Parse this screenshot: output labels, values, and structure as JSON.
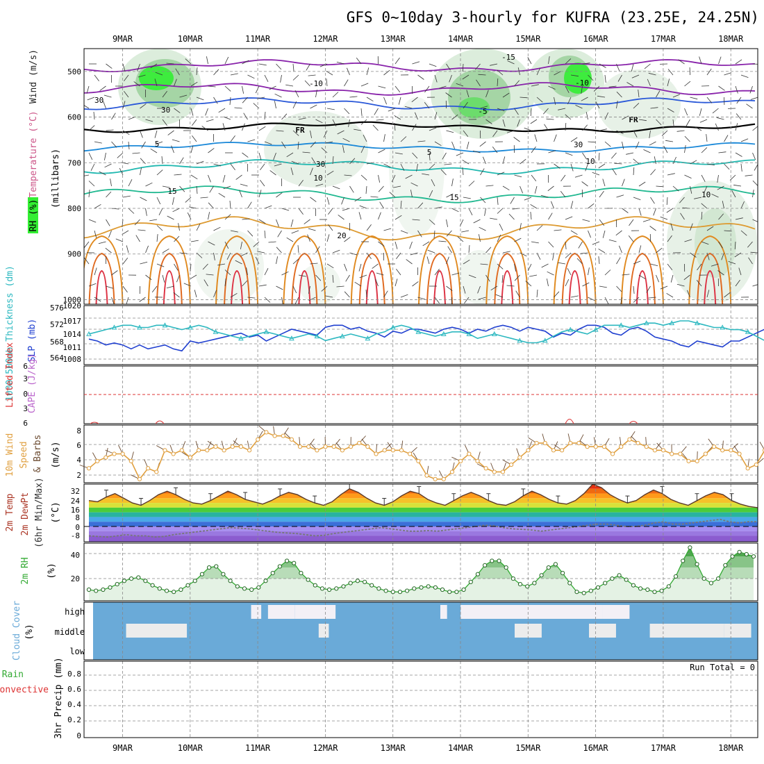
{
  "title": "GFS 0~10day 3-hourly for KUFRA (23.25E, 24.25N)",
  "dates": [
    "9MAR",
    "10MAR",
    "11MAR",
    "12MAR",
    "13MAR",
    "14MAR",
    "15MAR",
    "16MAR",
    "17MAR",
    "18MAR"
  ],
  "colors": {
    "rh_green": "#33ee33",
    "slp": "#1f3fd0",
    "thickness": "#2cb8c0",
    "wind_speed": "#e0a040",
    "cloud_bg": "#6aaad8",
    "li_line": "#dd3333",
    "cape": "#bb66cc",
    "rh2m": "#33aa33",
    "temp_orange": "#ff9a1a"
  },
  "panels": {
    "upper": {
      "ylabel": "(millibars)",
      "legend": [
        "RH (%)",
        "Temperature (°C)",
        "Wind (m/s)"
      ],
      "legend_colors": [
        "#33aa33",
        "#cc5588",
        "#222222"
      ],
      "ticks": [
        "500",
        "600",
        "700",
        "800",
        "900",
        "1000"
      ],
      "isotherms": [
        {
          "label": "-15",
          "color": "#8822aa",
          "labels_at": [
            "15MAR"
          ]
        },
        {
          "label": "-10",
          "color": "#8822aa",
          "labels_at": [
            "12MAR",
            "16MAR"
          ]
        },
        {
          "label": "-5",
          "color": "#2a58d8",
          "labels_at": [
            "14MAR"
          ]
        },
        {
          "label": "FR",
          "color": "#000000",
          "labels_at": [
            "11MAR",
            "16MAR"
          ]
        },
        {
          "label": "5",
          "color": "#1a88d8",
          "labels_at": [
            "10MAR",
            "14MAR"
          ]
        },
        {
          "label": "10",
          "color": "#20b8b0",
          "labels_at": [
            "12MAR",
            "15MAR"
          ]
        },
        {
          "label": "15",
          "color": "#20b890",
          "labels_at": [
            "10MAR",
            "13MAR"
          ]
        },
        {
          "label": "20",
          "color": "#dd9a30",
          "labels_at": [
            "12MAR"
          ]
        }
      ],
      "rh_labels": [
        "30",
        "30",
        "30",
        "30",
        "10"
      ]
    },
    "pressure": {
      "ylabel_left": "1000-500mb Thickness (dm)",
      "ylabel_right": "SLP (mb)",
      "ticks_left": [
        "576",
        "572",
        "568",
        "564"
      ],
      "ticks_right": [
        "1020",
        "1017",
        "1014",
        "1011",
        "1008"
      ]
    },
    "stability": {
      "ylabel_a": "Lifted Index",
      "ylabel_b": "CAPE (J/kg)",
      "ticks": [
        "6",
        "3",
        "0",
        "3",
        "6"
      ]
    },
    "wind": {
      "ylabel_a": "10m Wind",
      "ylabel_b": "Speed",
      "ylabel_c": "& Barbs",
      "ylabel_d": "(m/s)",
      "ticks": [
        "8",
        "6",
        "4",
        "2"
      ]
    },
    "temp": {
      "ylabel_a": "2m Temp",
      "ylabel_b": "2m DewPt",
      "ylabel_c": "(6hr Min/Max)",
      "ylabel_d": "(°C)",
      "ticks": [
        "32",
        "24",
        "16",
        "8",
        "0",
        "-8"
      ]
    },
    "rh": {
      "ylabel_a": "2m RH",
      "ylabel_b": "(%)",
      "ticks": [
        "40",
        "20"
      ]
    },
    "cloud": {
      "ylabel_a": "Cloud Cover",
      "ylabel_b": "(%)",
      "levels": [
        "high",
        "middle",
        "low"
      ]
    },
    "precip": {
      "ylabel_a": "Total / Rain",
      "ylabel_b": "Convective",
      "ylabel_c": "3hr Precip (mm)",
      "ticks": [
        "0.8",
        "0.6",
        "0.4",
        "0.2",
        "0"
      ],
      "run_total": "Run Total = 0"
    }
  },
  "chart_data": {
    "type": "line",
    "title": "GFS 0~10day 3-hourly for KUFRA (23.25E, 24.25N)",
    "time_axis": [
      "9MAR",
      "10MAR",
      "11MAR",
      "12MAR",
      "13MAR",
      "14MAR",
      "15MAR",
      "16MAR",
      "17MAR",
      "18MAR"
    ],
    "step_hours": 3,
    "series": [
      {
        "name": "SLP (mb)",
        "axis_range": [
          1006,
          1021
        ],
        "values": [
          1012.5,
          1012,
          1011,
          1011.5,
          1011,
          1010,
          1011,
          1010,
          1010.5,
          1011,
          1010,
          1009.5,
          1012,
          1011.5,
          1012,
          1012.5,
          1013,
          1013.5,
          1014,
          1013,
          1013.5,
          1012,
          1013,
          1014,
          1015,
          1014.5,
          1014,
          1013.5,
          1015.5,
          1016,
          1016,
          1015,
          1015.5,
          1014.5,
          1014,
          1013,
          1014.5,
          1014,
          1015,
          1015,
          1014.5,
          1014,
          1015,
          1015.5,
          1015,
          1014,
          1015,
          1014.5,
          1015.5,
          1016,
          1015.5,
          1014.5,
          1015.5,
          1015,
          1014.5,
          1013,
          1014,
          1013.5,
          1015,
          1016,
          1016,
          1015.5,
          1014,
          1013.5,
          1015,
          1015.5,
          1014.5,
          1013,
          1012.5,
          1012,
          1011,
          1010.5,
          1012,
          1011.5,
          1011,
          1010.5,
          1012,
          1012,
          1013,
          1014,
          1015,
          1014,
          1014.5,
          1015,
          1016.5,
          1016.5,
          1015.5,
          1015,
          1016,
          1016.5,
          1017,
          1016.5,
          1016,
          1017.5,
          1018,
          1017.5,
          1017,
          1018.5,
          1019,
          1018.5
        ]
      },
      {
        "name": "1000-500mb Thickness (dm)",
        "axis_range": [
          563.5,
          577
        ],
        "values": [
          570.5,
          571,
          571.5,
          572,
          572.5,
          572.5,
          572,
          572,
          572.5,
          572.5,
          572,
          571.5,
          572,
          572.5,
          572,
          571,
          570.5,
          570,
          569.5,
          570,
          570.5,
          571,
          570.5,
          570,
          569.5,
          570,
          570.5,
          570,
          569,
          569.5,
          570,
          570.5,
          570,
          569.5,
          570.5,
          571,
          572,
          572.5,
          572,
          571,
          570.5,
          570,
          570.5,
          571,
          571,
          570.5,
          569.5,
          570,
          570.5,
          570,
          569.5,
          569,
          568.5,
          568.5,
          569,
          570,
          571,
          571.5,
          571,
          570.5,
          571.5,
          572.5,
          572.5,
          572.5,
          572,
          572.5,
          573,
          573,
          572.5,
          573,
          573.5,
          573.5,
          573,
          572.5,
          572,
          572,
          571.5,
          571.5,
          571,
          570,
          569,
          568,
          567.5,
          567,
          566,
          565.5,
          565,
          565.5,
          566,
          565.5,
          566,
          566,
          565.5,
          565,
          564.5,
          564.5,
          564.5,
          564.5,
          564.5,
          564.8
        ]
      },
      {
        "name": "10m Wind Speed (m/s)",
        "axis_range": [
          1,
          9
        ],
        "values": [
          3,
          4,
          4.5,
          5,
          5,
          4,
          1.5,
          3,
          2.5,
          5.5,
          5,
          5.5,
          4.5,
          5.5,
          5.5,
          6,
          5.5,
          6,
          6,
          5.5,
          7,
          8,
          7.5,
          7.5,
          7,
          6,
          6,
          5.5,
          6,
          6,
          5.5,
          6,
          6.5,
          6,
          5,
          5.5,
          5.5,
          5.5,
          5,
          4,
          2,
          1.5,
          1.5,
          2.5,
          4,
          5,
          4,
          3,
          2.5,
          2.5,
          3.5,
          4.5,
          5.5,
          6.5,
          6.5,
          5.5,
          5.5,
          6.5,
          6.5,
          6,
          6,
          6,
          5,
          6,
          7,
          6.5,
          6,
          5.5,
          5.5,
          5,
          5,
          4,
          4,
          5,
          6,
          5.5,
          5.5,
          5,
          3,
          3.5,
          5.5,
          6,
          6.5,
          5.5,
          4.5,
          5,
          6,
          6.5,
          7,
          7.5,
          8,
          7.5,
          7.5,
          7.5,
          6,
          7,
          8,
          7.5,
          7,
          7.5,
          5,
          4,
          3.5,
          2.5,
          3.5
        ]
      },
      {
        "name": "2m Temp (°C)",
        "axis_range": [
          -13,
          36
        ],
        "values": [
          22,
          21,
          25,
          28,
          24,
          20,
          18,
          22,
          27,
          30,
          27,
          23,
          20,
          19,
          22,
          26,
          30,
          27,
          23,
          21,
          19,
          22,
          26,
          29,
          27,
          23,
          20,
          18,
          21,
          27,
          32,
          29,
          24,
          20,
          18,
          21,
          26,
          30,
          28,
          23,
          20,
          18,
          22,
          26,
          29,
          26,
          22,
          19,
          18,
          21,
          26,
          30,
          27,
          23,
          20,
          19,
          22,
          28,
          36,
          33,
          27,
          23,
          20,
          22,
          27,
          31,
          28,
          23,
          20,
          18,
          22,
          26,
          29,
          27,
          22,
          19,
          17,
          16
        ]
      },
      {
        "name": "2m DewPt (°C)",
        "axis_range": [
          -13,
          36
        ],
        "values": [
          -8,
          -8.5,
          -9,
          -8,
          -7,
          -8,
          -8,
          -9,
          -8.5,
          -7,
          -6,
          -5,
          -4,
          -3,
          -2,
          -1,
          -1.5,
          -2,
          -3,
          -4,
          -5,
          -5.5,
          -6,
          -7,
          -8,
          -7.5,
          -6,
          -5,
          -4,
          -3,
          -2,
          -1,
          -2,
          -3,
          -4,
          -4,
          -3.5,
          -4,
          -3,
          -2,
          -1,
          0,
          1,
          0.5,
          -1,
          -2,
          -2.5,
          -3,
          -4,
          -3,
          -2,
          -1,
          0,
          1,
          2,
          2,
          1,
          0,
          0,
          1,
          3,
          4,
          2,
          2,
          3,
          4,
          5,
          6,
          4,
          3,
          4,
          4
        ]
      },
      {
        "name": "2m RH (%)",
        "axis_range": [
          0,
          52
        ],
        "values": [
          10,
          9,
          10,
          12,
          15,
          18,
          20,
          21,
          18,
          14,
          11,
          9,
          8,
          10,
          14,
          18,
          24,
          30,
          31,
          24,
          18,
          13,
          11,
          10,
          12,
          18,
          25,
          31,
          36,
          34,
          25,
          19,
          14,
          11,
          10,
          11,
          13,
          16,
          18,
          17,
          14,
          11,
          9,
          8,
          8,
          9,
          11,
          12,
          13,
          12,
          10,
          8,
          8,
          10,
          17,
          24,
          32,
          36,
          36,
          30,
          20,
          15,
          13,
          16,
          23,
          30,
          33,
          25,
          16,
          8,
          7,
          9,
          12,
          16,
          20,
          23,
          19,
          14,
          11,
          10,
          8,
          9,
          13,
          22,
          36,
          48,
          33,
          20,
          16,
          20,
          32,
          40,
          44,
          42,
          40
        ]
      },
      {
        "name": "Lifted Index",
        "axis_range": [
          -6,
          6
        ],
        "values": []
      },
      {
        "name": "CAPE (J/kg)",
        "axis_range": [
          0,
          0
        ],
        "values": []
      },
      {
        "name": "3hr Precip (mm)",
        "axis_range": [
          0,
          0.9
        ],
        "values": [
          0,
          0,
          0,
          0,
          0,
          0,
          0,
          0,
          0,
          0
        ]
      }
    ],
    "cloud_cover": {
      "high": [
        [
          5.8,
          6.1
        ],
        [
          6.3,
          7.1
        ],
        [
          7.1,
          8.3
        ],
        [
          11.4,
          11.6
        ],
        [
          12.0,
          16.2
        ],
        [
          16.2,
          17.0
        ]
      ],
      "middle": [
        [
          2.1,
          2.8
        ],
        [
          2.6,
          3.9
        ],
        [
          7.8,
          8.1
        ],
        [
          13.6,
          14.4
        ],
        [
          15.8,
          16.6
        ],
        [
          17.6,
          19.8
        ],
        [
          19.8,
          20.6
        ]
      ],
      "low": []
    },
    "grid": true
  }
}
